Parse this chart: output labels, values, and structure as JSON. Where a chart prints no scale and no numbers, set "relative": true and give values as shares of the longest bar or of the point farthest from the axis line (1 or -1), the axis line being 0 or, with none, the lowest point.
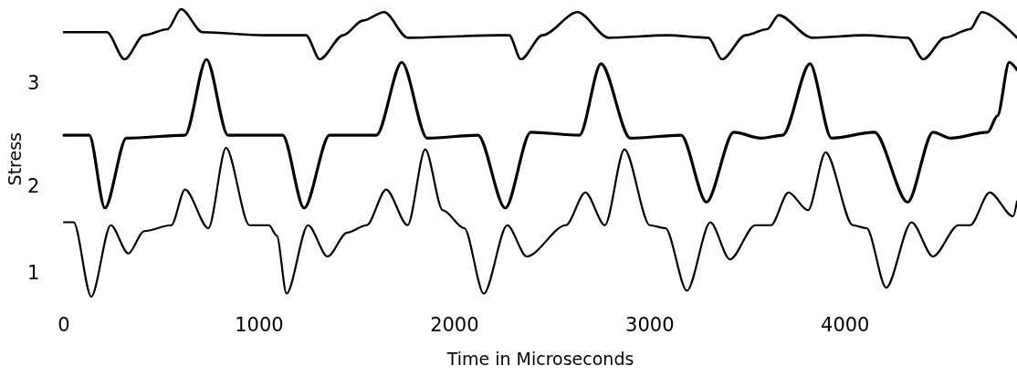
{
  "chart_data": [
    {
      "type": "line",
      "relative": true,
      "xlim": [
        0,
        4880
      ],
      "tick_labels": false,
      "series": [
        {
          "name": "3",
          "color": "#000000",
          "x": [
            0,
            220,
            310,
            410,
            530,
            600,
            710,
            1030,
            1240,
            1310,
            1430,
            1530,
            1640,
            1760,
            2230,
            2280,
            2340,
            2450,
            2630,
            2790,
            3090,
            3300,
            3370,
            3490,
            3600,
            3660,
            3830,
            4100,
            4320,
            4400,
            4510,
            4640,
            4700,
            4880
          ],
          "values": [
            0.54,
            0.54,
            0,
            0.48,
            0.6,
            1,
            0.54,
            0.48,
            0.48,
            0,
            0.48,
            0.77,
            0.94,
            0.43,
            0.48,
            0.48,
            0,
            0.48,
            0.94,
            0.43,
            0.48,
            0.43,
            0,
            0.48,
            0.6,
            0.88,
            0.43,
            0.48,
            0.43,
            0,
            0.43,
            0.6,
            0.94,
            0.43
          ]
        }
      ]
    },
    {
      "type": "line",
      "relative": true,
      "xlim": [
        0,
        4880
      ],
      "tick_labels": false,
      "ylabel": "Stress",
      "series": [
        {
          "name": "2",
          "color": "#000000",
          "x": [
            0,
            130,
            210,
            320,
            620,
            730,
            840,
            1120,
            1230,
            1360,
            1600,
            1730,
            1860,
            2120,
            2260,
            2390,
            2640,
            2750,
            2900,
            3160,
            3290,
            3430,
            3570,
            3680,
            3820,
            3930,
            4150,
            4320,
            4450,
            4540,
            4730,
            4780,
            4840,
            4880
          ],
          "values": [
            0.49,
            0.49,
            0,
            0.47,
            0.49,
            1,
            0.49,
            0.49,
            0,
            0.49,
            0.49,
            0.98,
            0.47,
            0.49,
            0,
            0.51,
            0.49,
            0.97,
            0.47,
            0.49,
            0.04,
            0.51,
            0.47,
            0.49,
            0.97,
            0.47,
            0.51,
            0.04,
            0.51,
            0.47,
            0.51,
            0.62,
            0.98,
            0.93
          ]
        }
      ]
    },
    {
      "type": "line",
      "relative": true,
      "xlim": [
        0,
        4880
      ],
      "xticks": [
        0,
        1000,
        2000,
        3000,
        4000
      ],
      "tick_labels": "x",
      "xlabel": "Time in Microseconds",
      "series": [
        {
          "name": "1",
          "color": "#000000",
          "x": [
            0,
            50,
            140,
            240,
            330,
            410,
            550,
            620,
            740,
            830,
            950,
            1050,
            1090,
            1140,
            1250,
            1350,
            1450,
            1550,
            1650,
            1760,
            1850,
            1940,
            2050,
            2150,
            2270,
            2370,
            2570,
            2670,
            2770,
            2870,
            3000,
            3080,
            3190,
            3310,
            3410,
            3540,
            3620,
            3710,
            3810,
            3900,
            4040,
            4110,
            4210,
            4340,
            4450,
            4580,
            4640,
            4740,
            4860,
            4880
          ],
          "values": [
            0.5,
            0.5,
            0,
            0.48,
            0.29,
            0.44,
            0.48,
            0.72,
            0.46,
            1,
            0.48,
            0.48,
            0.41,
            0.02,
            0.48,
            0.27,
            0.43,
            0.48,
            0.72,
            0.48,
            0.99,
            0.58,
            0.46,
            0.02,
            0.48,
            0.27,
            0.48,
            0.7,
            0.48,
            0.99,
            0.48,
            0.46,
            0.04,
            0.5,
            0.25,
            0.48,
            0.48,
            0.7,
            0.58,
            0.97,
            0.48,
            0.46,
            0.06,
            0.5,
            0.27,
            0.48,
            0.48,
            0.7,
            0.54,
            0.64
          ]
        }
      ]
    }
  ]
}
